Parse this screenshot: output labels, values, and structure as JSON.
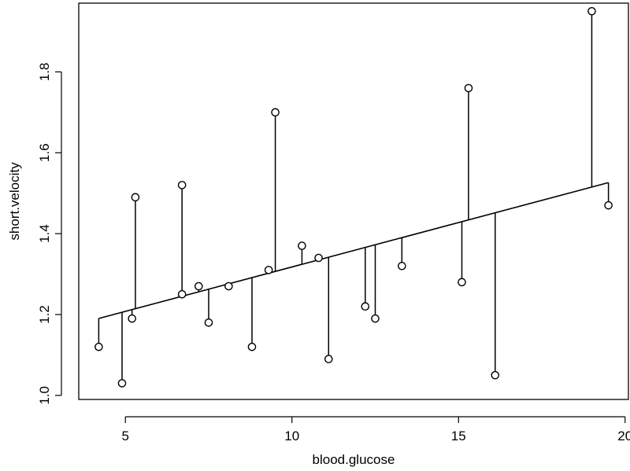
{
  "chart_data": {
    "type": "scatter",
    "title": "",
    "xlabel": "blood.glucose",
    "ylabel": "short.velocity",
    "xlim": [
      3.6,
      20.1
    ],
    "ylim": [
      0.99,
      1.97
    ],
    "x_ticks": [
      5,
      10,
      15,
      20
    ],
    "y_ticks": [
      1.0,
      1.2,
      1.4,
      1.6,
      1.8
    ],
    "x_tick_labels": [
      "5",
      "10",
      "15",
      "20"
    ],
    "y_tick_labels": [
      "1.0",
      "1.2",
      "1.4",
      "1.6",
      "1.8"
    ],
    "grid": false,
    "legend": "none",
    "regression_line": {
      "intercept": 1.098,
      "slope": 0.02196,
      "x_range": [
        4.2,
        19.5
      ]
    },
    "points": [
      {
        "x": 4.2,
        "y": 1.12
      },
      {
        "x": 4.9,
        "y": 1.03
      },
      {
        "x": 5.2,
        "y": 1.19
      },
      {
        "x": 5.3,
        "y": 1.49
      },
      {
        "x": 6.7,
        "y": 1.52
      },
      {
        "x": 6.7,
        "y": 1.25
      },
      {
        "x": 7.2,
        "y": 1.27
      },
      {
        "x": 7.5,
        "y": 1.18
      },
      {
        "x": 8.1,
        "y": 1.27
      },
      {
        "x": 8.8,
        "y": 1.12
      },
      {
        "x": 9.3,
        "y": 1.31
      },
      {
        "x": 9.5,
        "y": 1.7
      },
      {
        "x": 10.3,
        "y": 1.37
      },
      {
        "x": 10.8,
        "y": 1.34
      },
      {
        "x": 11.1,
        "y": 1.09
      },
      {
        "x": 12.2,
        "y": 1.22
      },
      {
        "x": 12.5,
        "y": 1.19
      },
      {
        "x": 13.3,
        "y": 1.32
      },
      {
        "x": 15.1,
        "y": 1.28
      },
      {
        "x": 15.3,
        "y": 1.76
      },
      {
        "x": 16.1,
        "y": 1.05
      },
      {
        "x": 19.0,
        "y": 1.95
      },
      {
        "x": 19.5,
        "y": 1.47
      }
    ]
  }
}
